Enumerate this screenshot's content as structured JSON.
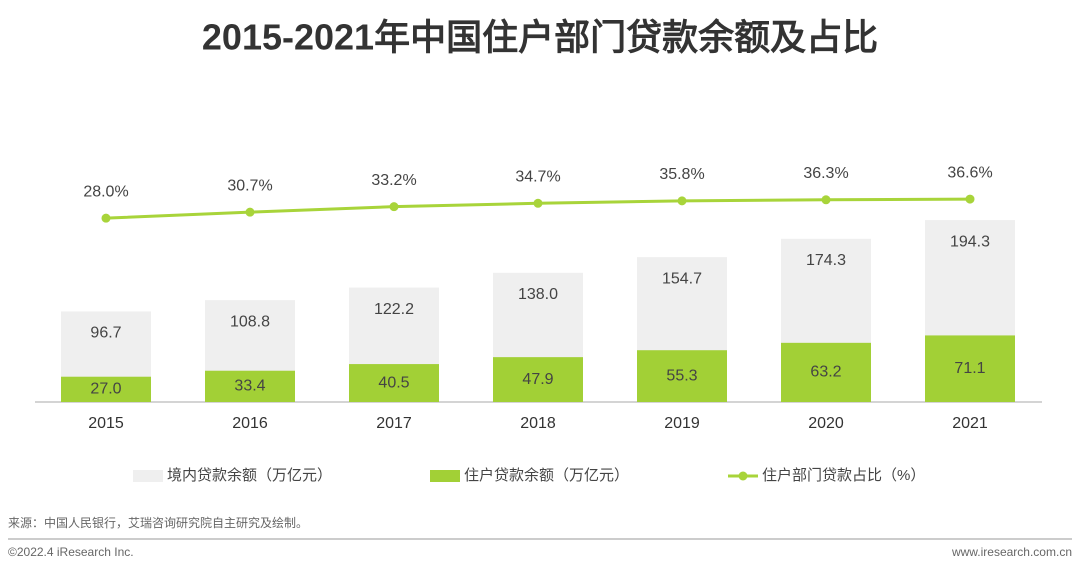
{
  "chart_data": {
    "type": "bar",
    "title": "2015-2021年中国住户部门贷款余额及占比",
    "categories": [
      "2015",
      "2016",
      "2017",
      "2018",
      "2019",
      "2020",
      "2021"
    ],
    "series": [
      {
        "name": "境内贷款余额（万亿元）",
        "color": "#efefef",
        "values": [
          96.7,
          108.8,
          122.2,
          138.0,
          154.7,
          174.3,
          194.3
        ],
        "value_labels": [
          "96.7",
          "108.8",
          "122.2",
          "138.0",
          "154.7",
          "174.3",
          "194.3"
        ]
      },
      {
        "name": "住户贷款余额（万亿元）",
        "color": "#a2d036",
        "values": [
          27.0,
          33.4,
          40.5,
          47.9,
          55.3,
          63.2,
          71.1
        ],
        "value_labels": [
          "27.0",
          "33.4",
          "40.5",
          "47.9",
          "55.3",
          "63.2",
          "71.1"
        ]
      },
      {
        "name": "住户部门贷款占比（%）",
        "type": "line",
        "axis": "y2",
        "color": "#a8d43a",
        "values": [
          28.0,
          30.7,
          33.2,
          34.7,
          35.8,
          36.3,
          36.6
        ],
        "value_labels": [
          "28.0%",
          "30.7%",
          "33.2%",
          "34.7%",
          "35.8%",
          "36.3%",
          "36.6%"
        ]
      }
    ],
    "ylim": [
      0,
      220
    ],
    "y2lim": [
      -55,
      38
    ],
    "grid": false
  },
  "notes": {
    "source": "来源：中国人民银行，艾瑞咨询研究院自主研究及绘制。",
    "copyright": "©2022.4 iResearch Inc.",
    "website": "www.iresearch.com.cn"
  }
}
